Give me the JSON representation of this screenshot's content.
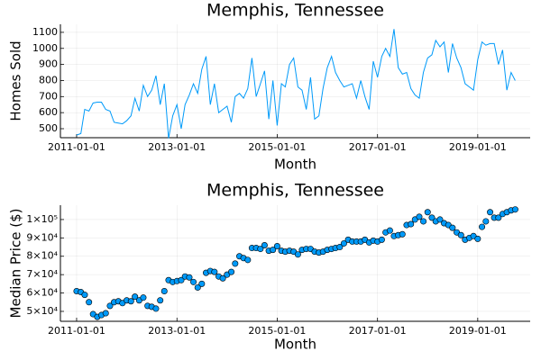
{
  "chart_data": [
    {
      "type": "line",
      "title": "Memphis, Tennessee",
      "x_label": "Month",
      "y_label": "Homes Sold",
      "x": [
        "2011-01-01",
        "2011-02-01",
        "2011-03-01",
        "2011-04-01",
        "2011-05-01",
        "2011-06-01",
        "2011-07-01",
        "2011-08-01",
        "2011-09-01",
        "2011-10-01",
        "2011-11-01",
        "2011-12-01",
        "2012-01-01",
        "2012-02-01",
        "2012-03-01",
        "2012-04-01",
        "2012-05-01",
        "2012-06-01",
        "2012-07-01",
        "2012-08-01",
        "2012-09-01",
        "2012-10-01",
        "2012-11-01",
        "2012-12-01",
        "2013-01-01",
        "2013-02-01",
        "2013-03-01",
        "2013-04-01",
        "2013-05-01",
        "2013-06-01",
        "2013-07-01",
        "2013-08-01",
        "2013-09-01",
        "2013-10-01",
        "2013-11-01",
        "2013-12-01",
        "2014-01-01",
        "2014-02-01",
        "2014-03-01",
        "2014-04-01",
        "2014-05-01",
        "2014-06-01",
        "2014-07-01",
        "2014-08-01",
        "2014-09-01",
        "2014-10-01",
        "2014-11-01",
        "2014-12-01",
        "2015-01-01",
        "2015-02-01",
        "2015-03-01",
        "2015-04-01",
        "2015-05-01",
        "2015-06-01",
        "2015-07-01",
        "2015-08-01",
        "2015-09-01",
        "2015-10-01",
        "2015-11-01",
        "2015-12-01",
        "2016-01-01",
        "2016-02-01",
        "2016-03-01",
        "2016-04-01",
        "2016-05-01",
        "2016-06-01",
        "2016-07-01",
        "2016-08-01",
        "2016-09-01",
        "2016-10-01",
        "2016-11-01",
        "2016-12-01",
        "2017-01-01",
        "2017-02-01",
        "2017-03-01",
        "2017-04-01",
        "2017-05-01",
        "2017-06-01",
        "2017-07-01",
        "2017-08-01",
        "2017-09-01",
        "2017-10-01",
        "2017-11-01",
        "2017-12-01",
        "2018-01-01",
        "2018-02-01",
        "2018-03-01",
        "2018-04-01",
        "2018-05-01",
        "2018-06-01",
        "2018-07-01",
        "2018-08-01",
        "2018-09-01",
        "2018-10-01",
        "2018-11-01",
        "2018-12-01",
        "2019-01-01",
        "2019-02-01",
        "2019-03-01",
        "2019-04-01",
        "2019-05-01",
        "2019-06-01",
        "2019-07-01",
        "2019-08-01",
        "2019-09-01",
        "2019-10-01"
      ],
      "series": [
        {
          "color": "#009af9",
          "values": [
            460,
            470,
            620,
            610,
            660,
            665,
            665,
            620,
            610,
            540,
            535,
            530,
            550,
            580,
            690,
            610,
            770,
            700,
            740,
            830,
            650,
            780,
            440,
            580,
            650,
            500,
            650,
            710,
            780,
            720,
            870,
            950,
            650,
            780,
            600,
            620,
            640,
            540,
            700,
            720,
            690,
            750,
            940,
            700,
            780,
            860,
            560,
            800,
            520,
            780,
            760,
            900,
            940,
            760,
            740,
            620,
            820,
            560,
            580,
            750,
            880,
            950,
            850,
            800,
            760,
            770,
            780,
            690,
            800,
            700,
            620,
            920,
            820,
            950,
            1000,
            950,
            1120,
            880,
            840,
            850,
            750,
            710,
            690,
            850,
            940,
            960,
            1050,
            1010,
            1040,
            850,
            1030,
            940,
            880,
            780,
            760,
            740,
            930,
            1040,
            1020,
            1030,
            1030,
            900,
            990,
            740,
            850,
            800
          ]
        }
      ],
      "xlim": [
        "2010-09-05",
        "2020-01-18"
      ],
      "xticks": [
        "2011-01-01",
        "2013-01-01",
        "2015-01-01",
        "2017-01-01",
        "2019-01-01"
      ],
      "ylim": [
        444,
        1150
      ],
      "yticks": [
        500,
        600,
        700,
        800,
        900,
        1000,
        1100
      ],
      "grid": true
    },
    {
      "type": "scatter",
      "title": "Memphis, Tennessee",
      "x_label": "Month",
      "y_label": "Median Price ($)",
      "x": [
        "2011-01-01",
        "2011-02-01",
        "2011-03-01",
        "2011-04-01",
        "2011-05-01",
        "2011-06-01",
        "2011-07-01",
        "2011-08-01",
        "2011-09-01",
        "2011-10-01",
        "2011-11-01",
        "2011-12-01",
        "2012-01-01",
        "2012-02-01",
        "2012-03-01",
        "2012-04-01",
        "2012-05-01",
        "2012-06-01",
        "2012-07-01",
        "2012-08-01",
        "2012-09-01",
        "2012-10-01",
        "2012-11-01",
        "2012-12-01",
        "2013-01-01",
        "2013-02-01",
        "2013-03-01",
        "2013-04-01",
        "2013-05-01",
        "2013-06-01",
        "2013-07-01",
        "2013-08-01",
        "2013-09-01",
        "2013-10-01",
        "2013-11-01",
        "2013-12-01",
        "2014-01-01",
        "2014-02-01",
        "2014-03-01",
        "2014-04-01",
        "2014-05-01",
        "2014-06-01",
        "2014-07-01",
        "2014-08-01",
        "2014-09-01",
        "2014-10-01",
        "2014-11-01",
        "2014-12-01",
        "2015-01-01",
        "2015-02-01",
        "2015-03-01",
        "2015-04-01",
        "2015-05-01",
        "2015-06-01",
        "2015-07-01",
        "2015-08-01",
        "2015-09-01",
        "2015-10-01",
        "2015-11-01",
        "2015-12-01",
        "2016-01-01",
        "2016-02-01",
        "2016-03-01",
        "2016-04-01",
        "2016-05-01",
        "2016-06-01",
        "2016-07-01",
        "2016-08-01",
        "2016-09-01",
        "2016-10-01",
        "2016-11-01",
        "2016-12-01",
        "2017-01-01",
        "2017-02-01",
        "2017-03-01",
        "2017-04-01",
        "2017-05-01",
        "2017-06-01",
        "2017-07-01",
        "2017-08-01",
        "2017-09-01",
        "2017-10-01",
        "2017-11-01",
        "2017-12-01",
        "2018-01-01",
        "2018-02-01",
        "2018-03-01",
        "2018-04-01",
        "2018-05-01",
        "2018-06-01",
        "2018-07-01",
        "2018-08-01",
        "2018-09-01",
        "2018-10-01",
        "2018-11-01",
        "2018-12-01",
        "2019-01-01",
        "2019-02-01",
        "2019-03-01",
        "2019-04-01",
        "2019-05-01",
        "2019-06-01",
        "2019-07-01",
        "2019-08-01",
        "2019-09-01",
        "2019-10-01"
      ],
      "series": [
        {
          "color": "#009af9",
          "values": [
            61000,
            60500,
            59000,
            55000,
            48500,
            47000,
            48000,
            49000,
            53000,
            55000,
            55500,
            54500,
            56000,
            55500,
            58000,
            56000,
            57500,
            53000,
            52500,
            51500,
            56000,
            61000,
            67000,
            66000,
            66500,
            67000,
            69000,
            68500,
            66000,
            63000,
            65000,
            71000,
            72000,
            71500,
            69000,
            68000,
            70000,
            71500,
            76000,
            80000,
            79000,
            78000,
            84500,
            84500,
            84000,
            86000,
            83000,
            83500,
            85500,
            83000,
            82500,
            83000,
            82500,
            81000,
            83500,
            84000,
            84000,
            82500,
            82000,
            82500,
            83500,
            84000,
            84500,
            85000,
            87000,
            89000,
            88000,
            88000,
            88000,
            89000,
            87500,
            88500,
            88000,
            89000,
            93000,
            94000,
            91000,
            91500,
            92000,
            97000,
            97500,
            100000,
            101500,
            99000,
            104000,
            101000,
            99000,
            100000,
            98000,
            97000,
            95500,
            93000,
            91500,
            89000,
            90000,
            91000,
            89500,
            96000,
            99000,
            104000,
            101000,
            101000,
            103000,
            104000,
            105000,
            105500
          ]
        }
      ],
      "xlim": [
        "2010-09-05",
        "2020-01-18"
      ],
      "xticks": [
        "2011-01-01",
        "2013-01-01",
        "2015-01-01",
        "2017-01-01",
        "2019-01-01"
      ],
      "ylim": [
        44600,
        107800
      ],
      "yticks": [
        {
          "value": 50000,
          "label": "5×10⁴"
        },
        {
          "value": 60000,
          "label": "6×10⁴"
        },
        {
          "value": 70000,
          "label": "7×10⁴"
        },
        {
          "value": 80000,
          "label": "8×10⁴"
        },
        {
          "value": 90000,
          "label": "9×10⁴"
        },
        {
          "value": 100000,
          "label": "1×10⁵"
        }
      ],
      "grid": true
    }
  ]
}
